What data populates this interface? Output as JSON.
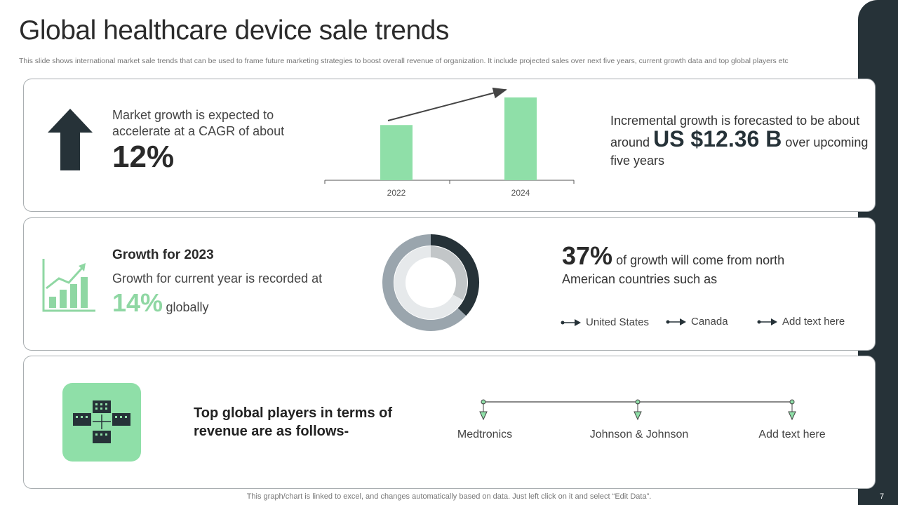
{
  "slide": {
    "title": "Global healthcare device sale trends",
    "subtitle": "This slide shows international market sale trends that can be used to frame future marketing strategies to boost overall revenue of organization. It include projected sales over next five years, current growth data and top global players etc",
    "footer": "This graph/chart is linked to excel, and changes automatically based on data. Just left click on it and select “Edit Data”.",
    "page_number": "7"
  },
  "panel1": {
    "text": "Market growth is expected to accelerate at a CAGR of about",
    "percent": "12%",
    "right_prefix": "Incremental growth is forecasted to be about around",
    "right_amount": "US $12.36 B",
    "right_suffix": "over upcoming five years",
    "icon": "up-arrow-icon"
  },
  "panel2": {
    "heading": "Growth for 2023",
    "text": "Growth for current year is recorded at",
    "percent": "14%",
    "percent_suffix": "globally",
    "right_percent": "37%",
    "right_text_1": "of growth will come from north",
    "right_text_2": "American countries such as",
    "countries": [
      "United States",
      "Canada",
      "Add text here"
    ],
    "icon": "growth-chart-icon"
  },
  "panel3": {
    "heading": "Top global players in terms of revenue are as follows-",
    "players": [
      "Medtronics",
      "Johnson  & Johnson",
      "Add text here"
    ],
    "icon": "buildings-network-icon"
  },
  "chart_data": [
    {
      "type": "bar",
      "categories": [
        "2022",
        "2024"
      ],
      "values": [
        62,
        93
      ],
      "ylim": [
        0,
        100
      ],
      "title": "",
      "xlabel": "",
      "ylabel": "",
      "colors": [
        "#8fdfa8"
      ],
      "annotation": "upward trend arrow"
    },
    {
      "type": "pie",
      "style": "donut",
      "rings": [
        {
          "name": "outer",
          "values": [
            37,
            63
          ],
          "colors": [
            "#263238",
            "#9aa5ad"
          ]
        },
        {
          "name": "inner",
          "values": [
            33,
            67
          ],
          "colors": [
            "#c2c6c8",
            "#e6e9eb"
          ]
        }
      ]
    }
  ],
  "colors": {
    "accent_green": "#8fd7a3",
    "dark": "#263238",
    "border": "#a9aeb1"
  }
}
